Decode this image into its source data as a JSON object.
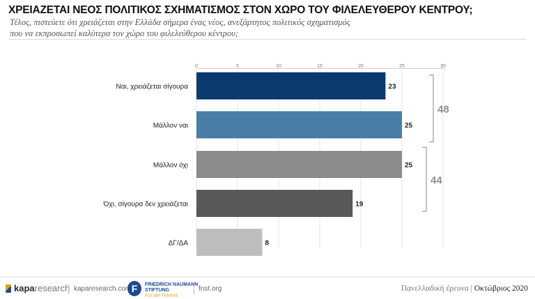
{
  "header": {
    "title": "ΧΡΕΙΑΖΕΤΑΙ ΝΕΟΣ ΠΟΛΙΤΙΚΟΣ ΣΧΗΜΑΤΙΣΜΟΣ ΣΤΟΝ ΧΩΡΟ ΤΟΥ ΦΙΛΕΛΕΥΘΕΡΟΥ ΚΕΝΤΡΟΥ;",
    "subtitle_line1": "Τέλος, πιστεύετε ότι χρειάζεται στην Ελλάδα σήμερα ένας νέος, ανεξάρτητος πολιτικός σχηματισμός",
    "subtitle_line2": "που να εκπροσωπεί καλύτερα τον χώρο του φιλελεύθερου κέντρου;"
  },
  "chart_data": {
    "type": "bar",
    "orientation": "horizontal",
    "categories": [
      "Ναι, χρειάζεται σίγουρα",
      "Μάλλον ναι",
      "Μάλλον όχι",
      "Όχι, σίγουρα δεν χρειάζεται",
      "ΔΓ/ΔΑ"
    ],
    "values": [
      23,
      25,
      25,
      19,
      8
    ],
    "colors": [
      "#0b3a6e",
      "#4a7ea6",
      "#8c8c8c",
      "#595959",
      "#bdbdbd"
    ],
    "xlim": [
      0,
      30
    ],
    "xticks": [
      0,
      5,
      10,
      15,
      20,
      25,
      30
    ],
    "grid": true,
    "groups": [
      {
        "label": "48",
        "from": 0,
        "to": 1
      },
      {
        "label": "44",
        "from": 2,
        "to": 3
      }
    ]
  },
  "footer": {
    "brand_bold": "kapa",
    "brand_light": "research",
    "kapa_url": "kaparesearch.com",
    "fnf_line1": "FRIEDRICH NAUMANN",
    "fnf_line2": "STIFTUNG",
    "fnf_line3": "Für die Freiheit",
    "fnf_url": "fnst.org",
    "survey": "Πανελλαδική έρευνα",
    "date": "Οκτώβριος 2020"
  }
}
